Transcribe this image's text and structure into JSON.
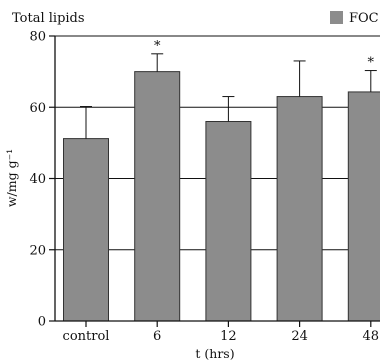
{
  "chart_data": {
    "type": "bar",
    "title": "Total lipids",
    "xlabel": "t (hrs)",
    "ylabel": "w/mg g⁻¹",
    "categories": [
      "control",
      "6",
      "12",
      "24",
      "48"
    ],
    "series": [
      {
        "name": "FOC",
        "values": [
          51.2,
          70.0,
          56.0,
          63.0,
          64.3
        ],
        "error": [
          9.0,
          5.0,
          7.0,
          10.0,
          6.0
        ],
        "significant": [
          "",
          "*",
          "",
          "",
          "*"
        ]
      }
    ],
    "ylim": [
      0,
      80
    ],
    "yticks": [
      0,
      20,
      40,
      60,
      80
    ],
    "grid": true,
    "legend": "top-right",
    "colors": {
      "bar": "#8c8c8c",
      "bar_edge": "#333333",
      "axis": "#111111"
    }
  }
}
